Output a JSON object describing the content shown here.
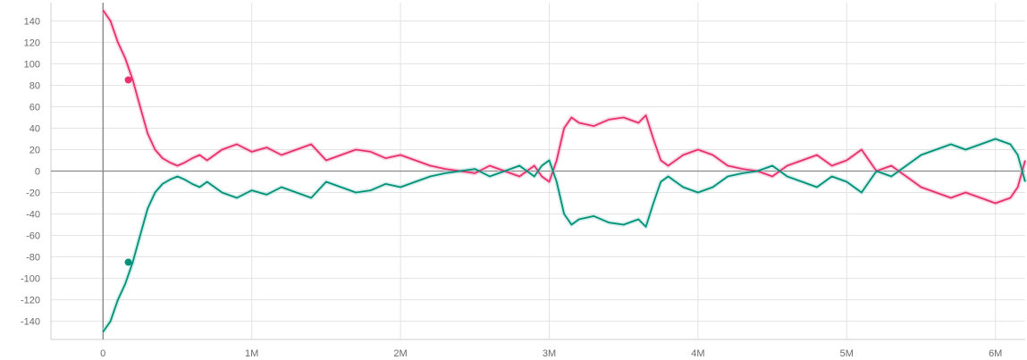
{
  "chart_data": {
    "type": "line",
    "title": "",
    "xlabel": "",
    "ylabel": "",
    "xlim": [
      -0.35,
      6.2
    ],
    "ylim": [
      -157,
      157
    ],
    "grid": true,
    "legend": "none",
    "x_ticks": [
      {
        "value": 0,
        "label": "0"
      },
      {
        "value": 1,
        "label": "1M"
      },
      {
        "value": 2,
        "label": "2M"
      },
      {
        "value": 3,
        "label": "3M"
      },
      {
        "value": 4,
        "label": "4M"
      },
      {
        "value": 5,
        "label": "5M"
      },
      {
        "value": 6,
        "label": "6M"
      }
    ],
    "y_ticks": [
      {
        "value": 140,
        "label": "140"
      },
      {
        "value": 120,
        "label": "120"
      },
      {
        "value": 100,
        "label": "100"
      },
      {
        "value": 80,
        "label": "80"
      },
      {
        "value": 60,
        "label": "60"
      },
      {
        "value": 40,
        "label": "40"
      },
      {
        "value": 20,
        "label": "20"
      },
      {
        "value": 0,
        "label": "0"
      },
      {
        "value": -20,
        "label": "-20"
      },
      {
        "value": -40,
        "label": "-40"
      },
      {
        "value": -60,
        "label": "-60"
      },
      {
        "value": -80,
        "label": "-80"
      },
      {
        "value": -100,
        "label": "-100"
      },
      {
        "value": -120,
        "label": "-120"
      },
      {
        "value": -140,
        "label": "-140"
      }
    ],
    "series": [
      {
        "color": "#e8316f",
        "raw_color": "#f4a3c0",
        "x": [
          0,
          0.05,
          0.1,
          0.15,
          0.2,
          0.25,
          0.3,
          0.35,
          0.4,
          0.45,
          0.5,
          0.55,
          0.6,
          0.65,
          0.7,
          0.8,
          0.9,
          1.0,
          1.1,
          1.2,
          1.3,
          1.4,
          1.5,
          1.6,
          1.7,
          1.8,
          1.9,
          2.0,
          2.1,
          2.2,
          2.3,
          2.4,
          2.5,
          2.6,
          2.7,
          2.8,
          2.9,
          2.95,
          3.0,
          3.05,
          3.1,
          3.15,
          3.2,
          3.3,
          3.4,
          3.5,
          3.6,
          3.65,
          3.7,
          3.75,
          3.8,
          3.9,
          4.0,
          4.1,
          4.2,
          4.3,
          4.4,
          4.5,
          4.6,
          4.7,
          4.8,
          4.9,
          5.0,
          5.1,
          5.2,
          5.3,
          5.4,
          5.5,
          5.6,
          5.7,
          5.8,
          5.9,
          6.0,
          6.1,
          6.15,
          6.2
        ],
        "y": [
          150,
          140,
          120,
          105,
          85,
          60,
          35,
          20,
          12,
          8,
          5,
          8,
          12,
          15,
          10,
          20,
          25,
          18,
          22,
          15,
          20,
          25,
          10,
          15,
          20,
          18,
          12,
          15,
          10,
          5,
          2,
          0,
          -2,
          5,
          0,
          -5,
          5,
          -5,
          -10,
          10,
          40,
          50,
          45,
          42,
          48,
          50,
          45,
          52,
          30,
          10,
          5,
          15,
          20,
          15,
          5,
          2,
          0,
          -5,
          5,
          10,
          15,
          5,
          10,
          20,
          0,
          5,
          -5,
          -15,
          -20,
          -25,
          -20,
          -25,
          -30,
          -25,
          -15,
          10
        ],
        "markers": [
          {
            "x": 0.17,
            "y": 85
          }
        ]
      },
      {
        "color": "#00917a",
        "raw_color": "#9fd9ce",
        "x": [
          0,
          0.05,
          0.1,
          0.15,
          0.2,
          0.25,
          0.3,
          0.35,
          0.4,
          0.45,
          0.5,
          0.55,
          0.6,
          0.65,
          0.7,
          0.8,
          0.9,
          1.0,
          1.1,
          1.2,
          1.3,
          1.4,
          1.5,
          1.6,
          1.7,
          1.8,
          1.9,
          2.0,
          2.1,
          2.2,
          2.3,
          2.4,
          2.5,
          2.6,
          2.7,
          2.8,
          2.9,
          2.95,
          3.0,
          3.05,
          3.1,
          3.15,
          3.2,
          3.3,
          3.4,
          3.5,
          3.6,
          3.65,
          3.7,
          3.75,
          3.8,
          3.9,
          4.0,
          4.1,
          4.2,
          4.3,
          4.4,
          4.5,
          4.6,
          4.7,
          4.8,
          4.9,
          5.0,
          5.1,
          5.2,
          5.3,
          5.4,
          5.5,
          5.6,
          5.7,
          5.8,
          5.9,
          6.0,
          6.1,
          6.15,
          6.2
        ],
        "y": [
          -150,
          -140,
          -120,
          -105,
          -85,
          -60,
          -35,
          -20,
          -12,
          -8,
          -5,
          -8,
          -12,
          -15,
          -10,
          -20,
          -25,
          -18,
          -22,
          -15,
          -20,
          -25,
          -10,
          -15,
          -20,
          -18,
          -12,
          -15,
          -10,
          -5,
          -2,
          0,
          2,
          -5,
          0,
          5,
          -5,
          5,
          10,
          -10,
          -40,
          -50,
          -45,
          -42,
          -48,
          -50,
          -45,
          -52,
          -30,
          -10,
          -5,
          -15,
          -20,
          -15,
          -5,
          -2,
          0,
          5,
          -5,
          -10,
          -15,
          -5,
          -10,
          -20,
          0,
          -5,
          5,
          15,
          20,
          25,
          20,
          25,
          30,
          25,
          15,
          -10
        ],
        "markers": [
          {
            "x": 0.17,
            "y": -85
          }
        ]
      }
    ]
  }
}
